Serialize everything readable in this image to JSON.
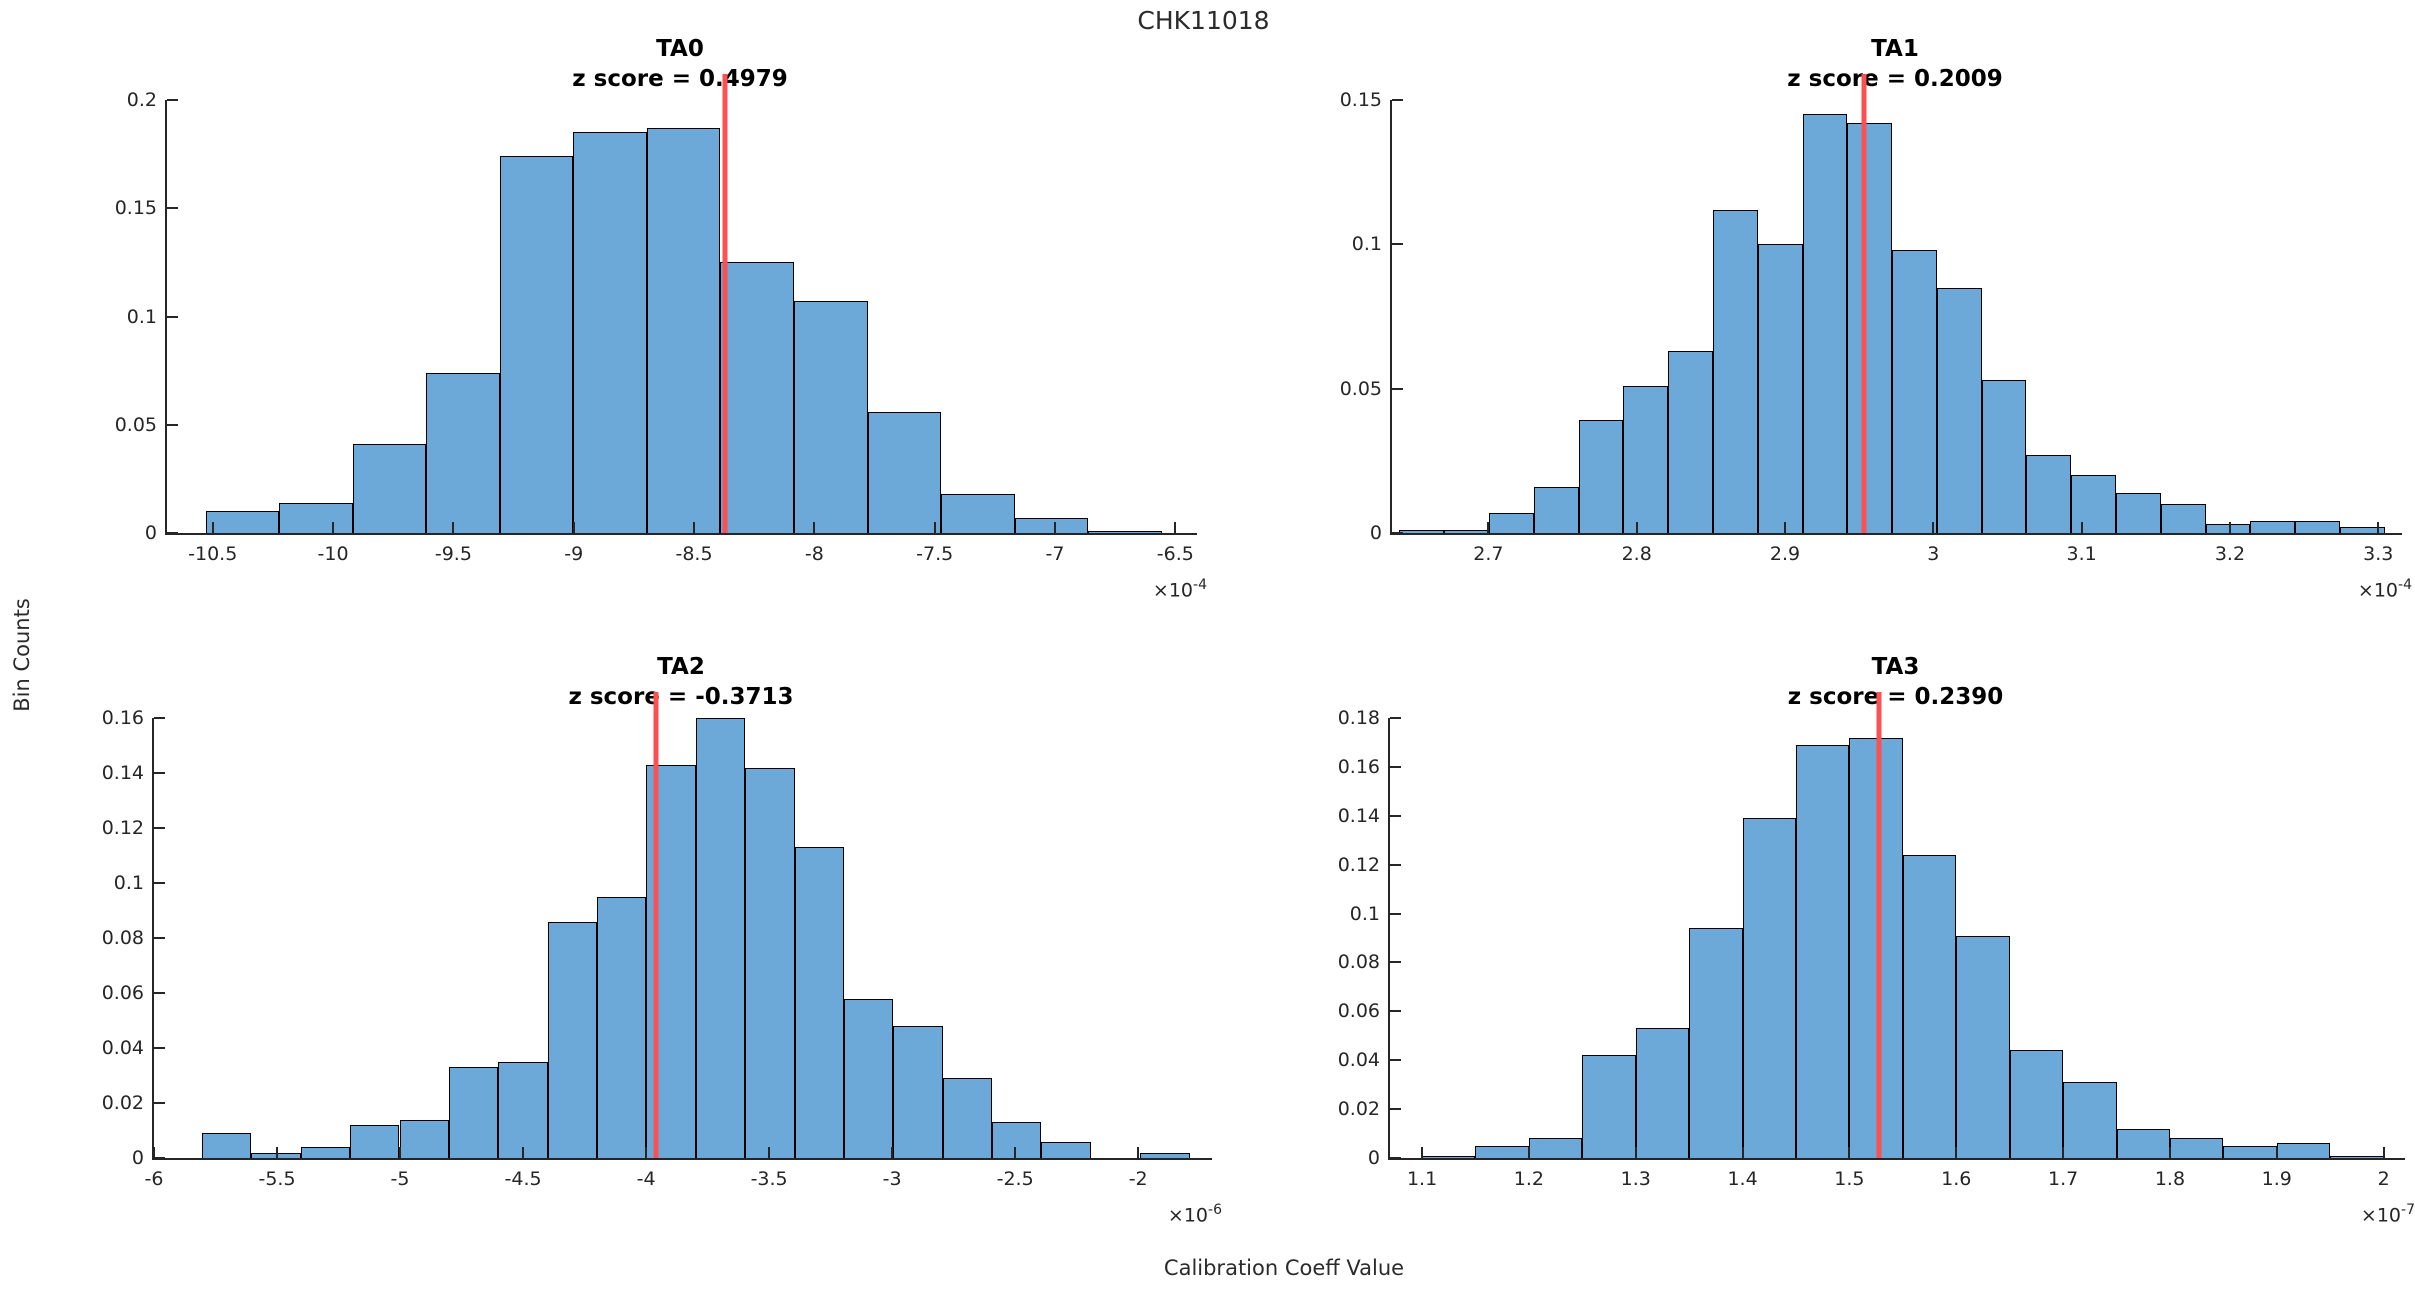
{
  "figure": {
    "title": "CHK11018",
    "ylabel": "Bin Counts",
    "xlabel": "Calibration Coeff Value",
    "colors": {
      "background": "#ffffff",
      "bar_fill": "#6CA9D8",
      "bar_edge": "#000000",
      "red_line": "#FB5153",
      "axis": "#262626",
      "tick_text": "#262626",
      "title_text": "#2b2b2b",
      "subplot_title_text": "#000000"
    }
  },
  "chart_data": [
    {
      "type": "bar",
      "subtype": "histogram",
      "title": "TA0",
      "subtitle": "z score = 0.4979",
      "z_score": 0.4979,
      "exponent_base": "×10",
      "exponent_power": "-4",
      "xlim": [
        -10.69,
        -6.41
      ],
      "ylim": [
        0,
        0.2
      ],
      "xticks": [
        -10.5,
        -10,
        -9.5,
        -9,
        -8.5,
        -8,
        -7.5,
        -7,
        -6.5
      ],
      "xtick_labels": [
        "-10.5",
        "-10",
        "-9.5",
        "-9",
        "-8.5",
        "-8",
        "-7.5",
        "-7",
        "-6.5"
      ],
      "yticks": [
        0,
        0.05,
        0.1,
        0.15,
        0.2
      ],
      "ytick_labels": [
        "0",
        "0.05",
        "0.1",
        "0.15",
        "0.2"
      ],
      "bin_start": -10.53,
      "bin_width": 0.3057,
      "heights": [
        0.01,
        0.014,
        0.041,
        0.074,
        0.174,
        0.185,
        0.187,
        0.125,
        0.107,
        0.056,
        0.018,
        0.007,
        0.001
      ],
      "red_line_x": -8.37
    },
    {
      "type": "bar",
      "subtype": "histogram",
      "title": "TA1",
      "subtitle": "z score = 0.2009",
      "z_score": 0.2009,
      "exponent_base": "×10",
      "exponent_power": "-4",
      "xlim": [
        2.635,
        3.316
      ],
      "ylim": [
        0,
        0.15
      ],
      "xticks": [
        2.7,
        2.8,
        2.9,
        3.0,
        3.1,
        3.2,
        3.3
      ],
      "xtick_labels": [
        "2.7",
        "2.8",
        "2.9",
        "3",
        "3.1",
        "3.2",
        "3.3"
      ],
      "yticks": [
        0,
        0.05,
        0.1,
        0.15
      ],
      "ytick_labels": [
        "0",
        "0.05",
        "0.1",
        "0.15"
      ],
      "bin_start": 2.64,
      "bin_width": 0.0302,
      "heights": [
        0.001,
        0.001,
        0.007,
        0.016,
        0.039,
        0.051,
        0.063,
        0.112,
        0.1,
        0.145,
        0.142,
        0.098,
        0.085,
        0.053,
        0.027,
        0.02,
        0.014,
        0.01,
        0.003,
        0.004,
        0.004,
        0.002
      ],
      "red_line_x": 2.953
    },
    {
      "type": "bar",
      "subtype": "histogram",
      "title": "TA2",
      "subtitle": "z score = -0.3713",
      "z_score": -0.3713,
      "exponent_base": "×10",
      "exponent_power": "-6",
      "xlim": [
        -6.0,
        -1.7
      ],
      "ylim": [
        0,
        0.16
      ],
      "xticks": [
        -6,
        -5.5,
        -5,
        -4.5,
        -4,
        -3.5,
        -3,
        -2.5,
        -2
      ],
      "xtick_labels": [
        "-6",
        "-5.5",
        "-5",
        "-4.5",
        "-4",
        "-3.5",
        "-3",
        "-2.5",
        "-2"
      ],
      "yticks": [
        0,
        0.02,
        0.04,
        0.06,
        0.08,
        0.1,
        0.12,
        0.14,
        0.16
      ],
      "ytick_labels": [
        "0",
        "0.02",
        "0.04",
        "0.06",
        "0.08",
        "0.1",
        "0.12",
        "0.14",
        "0.16"
      ],
      "bin_start": -5.805,
      "bin_width": 0.2007,
      "heights": [
        0.009,
        0.002,
        0.004,
        0.012,
        0.014,
        0.033,
        0.035,
        0.086,
        0.095,
        0.143,
        0.16,
        0.142,
        0.113,
        0.058,
        0.048,
        0.029,
        0.013,
        0.006,
        0,
        0.002
      ],
      "red_line_x": -3.96
    },
    {
      "type": "bar",
      "subtype": "histogram",
      "title": "TA3",
      "subtitle": "z score = 0.2390",
      "z_score": 0.239,
      "exponent_base": "×10",
      "exponent_power": "-7",
      "xlim": [
        1.07,
        2.02
      ],
      "ylim": [
        0,
        0.18
      ],
      "xticks": [
        1.1,
        1.2,
        1.3,
        1.4,
        1.5,
        1.6,
        1.7,
        1.8,
        1.9,
        2.0
      ],
      "xtick_labels": [
        "1.1",
        "1.2",
        "1.3",
        "1.4",
        "1.5",
        "1.6",
        "1.7",
        "1.8",
        "1.9",
        "2"
      ],
      "yticks": [
        0,
        0.02,
        0.04,
        0.06,
        0.08,
        0.1,
        0.12,
        0.14,
        0.16,
        0.18
      ],
      "ytick_labels": [
        "0",
        "0.02",
        "0.04",
        "0.06",
        "0.08",
        "0.1",
        "0.12",
        "0.14",
        "0.16",
        "0.18"
      ],
      "bin_start": 1.1,
      "bin_width": 0.05,
      "heights": [
        0.001,
        0.005,
        0.008,
        0.042,
        0.053,
        0.094,
        0.139,
        0.169,
        0.172,
        0.124,
        0.091,
        0.044,
        0.031,
        0.012,
        0.008,
        0.005,
        0.006,
        0.001
      ],
      "red_line_x": 1.528
    }
  ]
}
